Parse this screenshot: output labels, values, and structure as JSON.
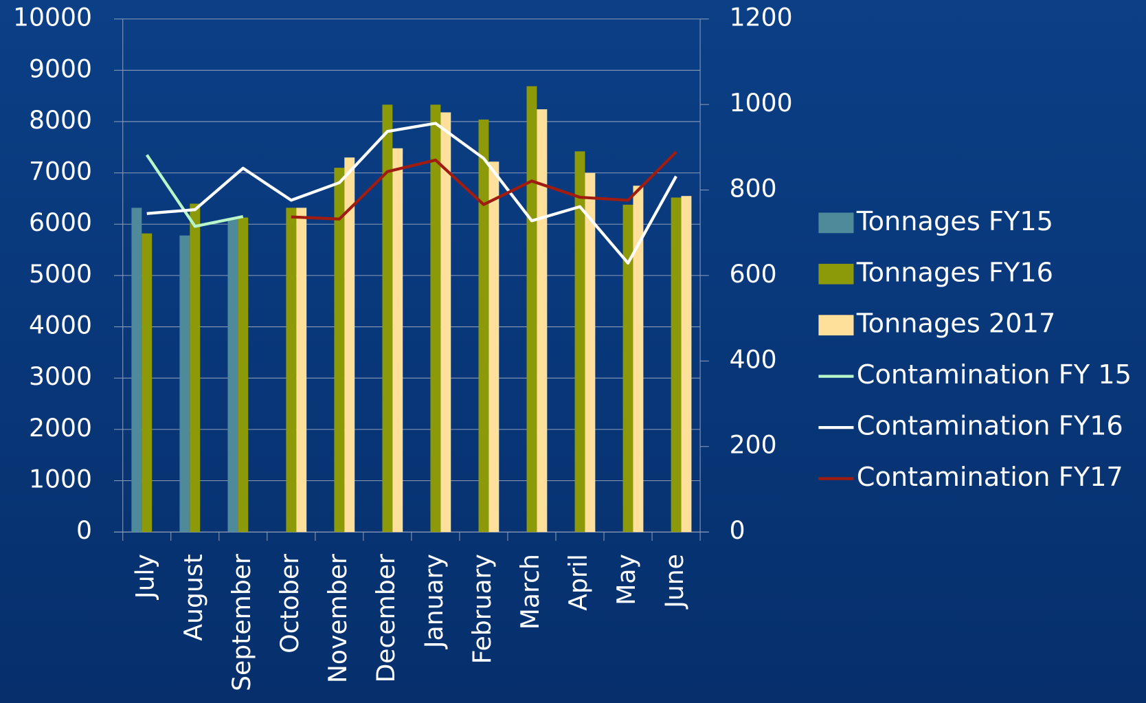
{
  "chart_data": {
    "type": "bar",
    "categories": [
      "July",
      "August",
      "September",
      "October",
      "November",
      "December",
      "January",
      "February",
      "March",
      "April",
      "May",
      "June"
    ],
    "series": [
      {
        "name": "Tonnages FY15",
        "color": "#4f8a9b",
        "values": [
          6320,
          5780,
          6100,
          null,
          null,
          null,
          null,
          null,
          null,
          null,
          null,
          null
        ]
      },
      {
        "name": "Tonnages FY16",
        "color": "#8c9a0a",
        "values": [
          5820,
          6400,
          6130,
          6320,
          7100,
          8330,
          8330,
          8040,
          8690,
          7420,
          6380,
          6520
        ]
      },
      {
        "name": "Tonnages 2017",
        "color": "#ffe09a",
        "values": [
          null,
          null,
          null,
          6320,
          7300,
          7480,
          8180,
          7220,
          8240,
          7000,
          6750,
          6550
        ]
      },
      {
        "name": "Contamination FY 15",
        "color": "#b8f5c8",
        "axis": "y2",
        "values": [
          882,
          715,
          738,
          null,
          null,
          null,
          null,
          null,
          null,
          null,
          null,
          null
        ]
      },
      {
        "name": "Contamination FY16",
        "color": "#ffffff",
        "axis": "y2",
        "values": [
          745,
          754,
          851,
          776,
          817,
          937,
          956,
          874,
          728,
          761,
          629,
          832
        ]
      },
      {
        "name": "Contamination FY17",
        "color": "#a01c10",
        "axis": "y2",
        "values": [
          null,
          null,
          null,
          737,
          732,
          843,
          870,
          766,
          821,
          783,
          776,
          889
        ]
      }
    ],
    "ylim": [
      0,
      10000
    ],
    "yticks": [
      0,
      1000,
      2000,
      3000,
      4000,
      5000,
      6000,
      7000,
      8000,
      9000,
      10000
    ],
    "y2lim": [
      0,
      1200
    ],
    "y2ticks": [
      0,
      200,
      400,
      600,
      800,
      1000,
      1200
    ],
    "grid": true,
    "legend": "right"
  }
}
